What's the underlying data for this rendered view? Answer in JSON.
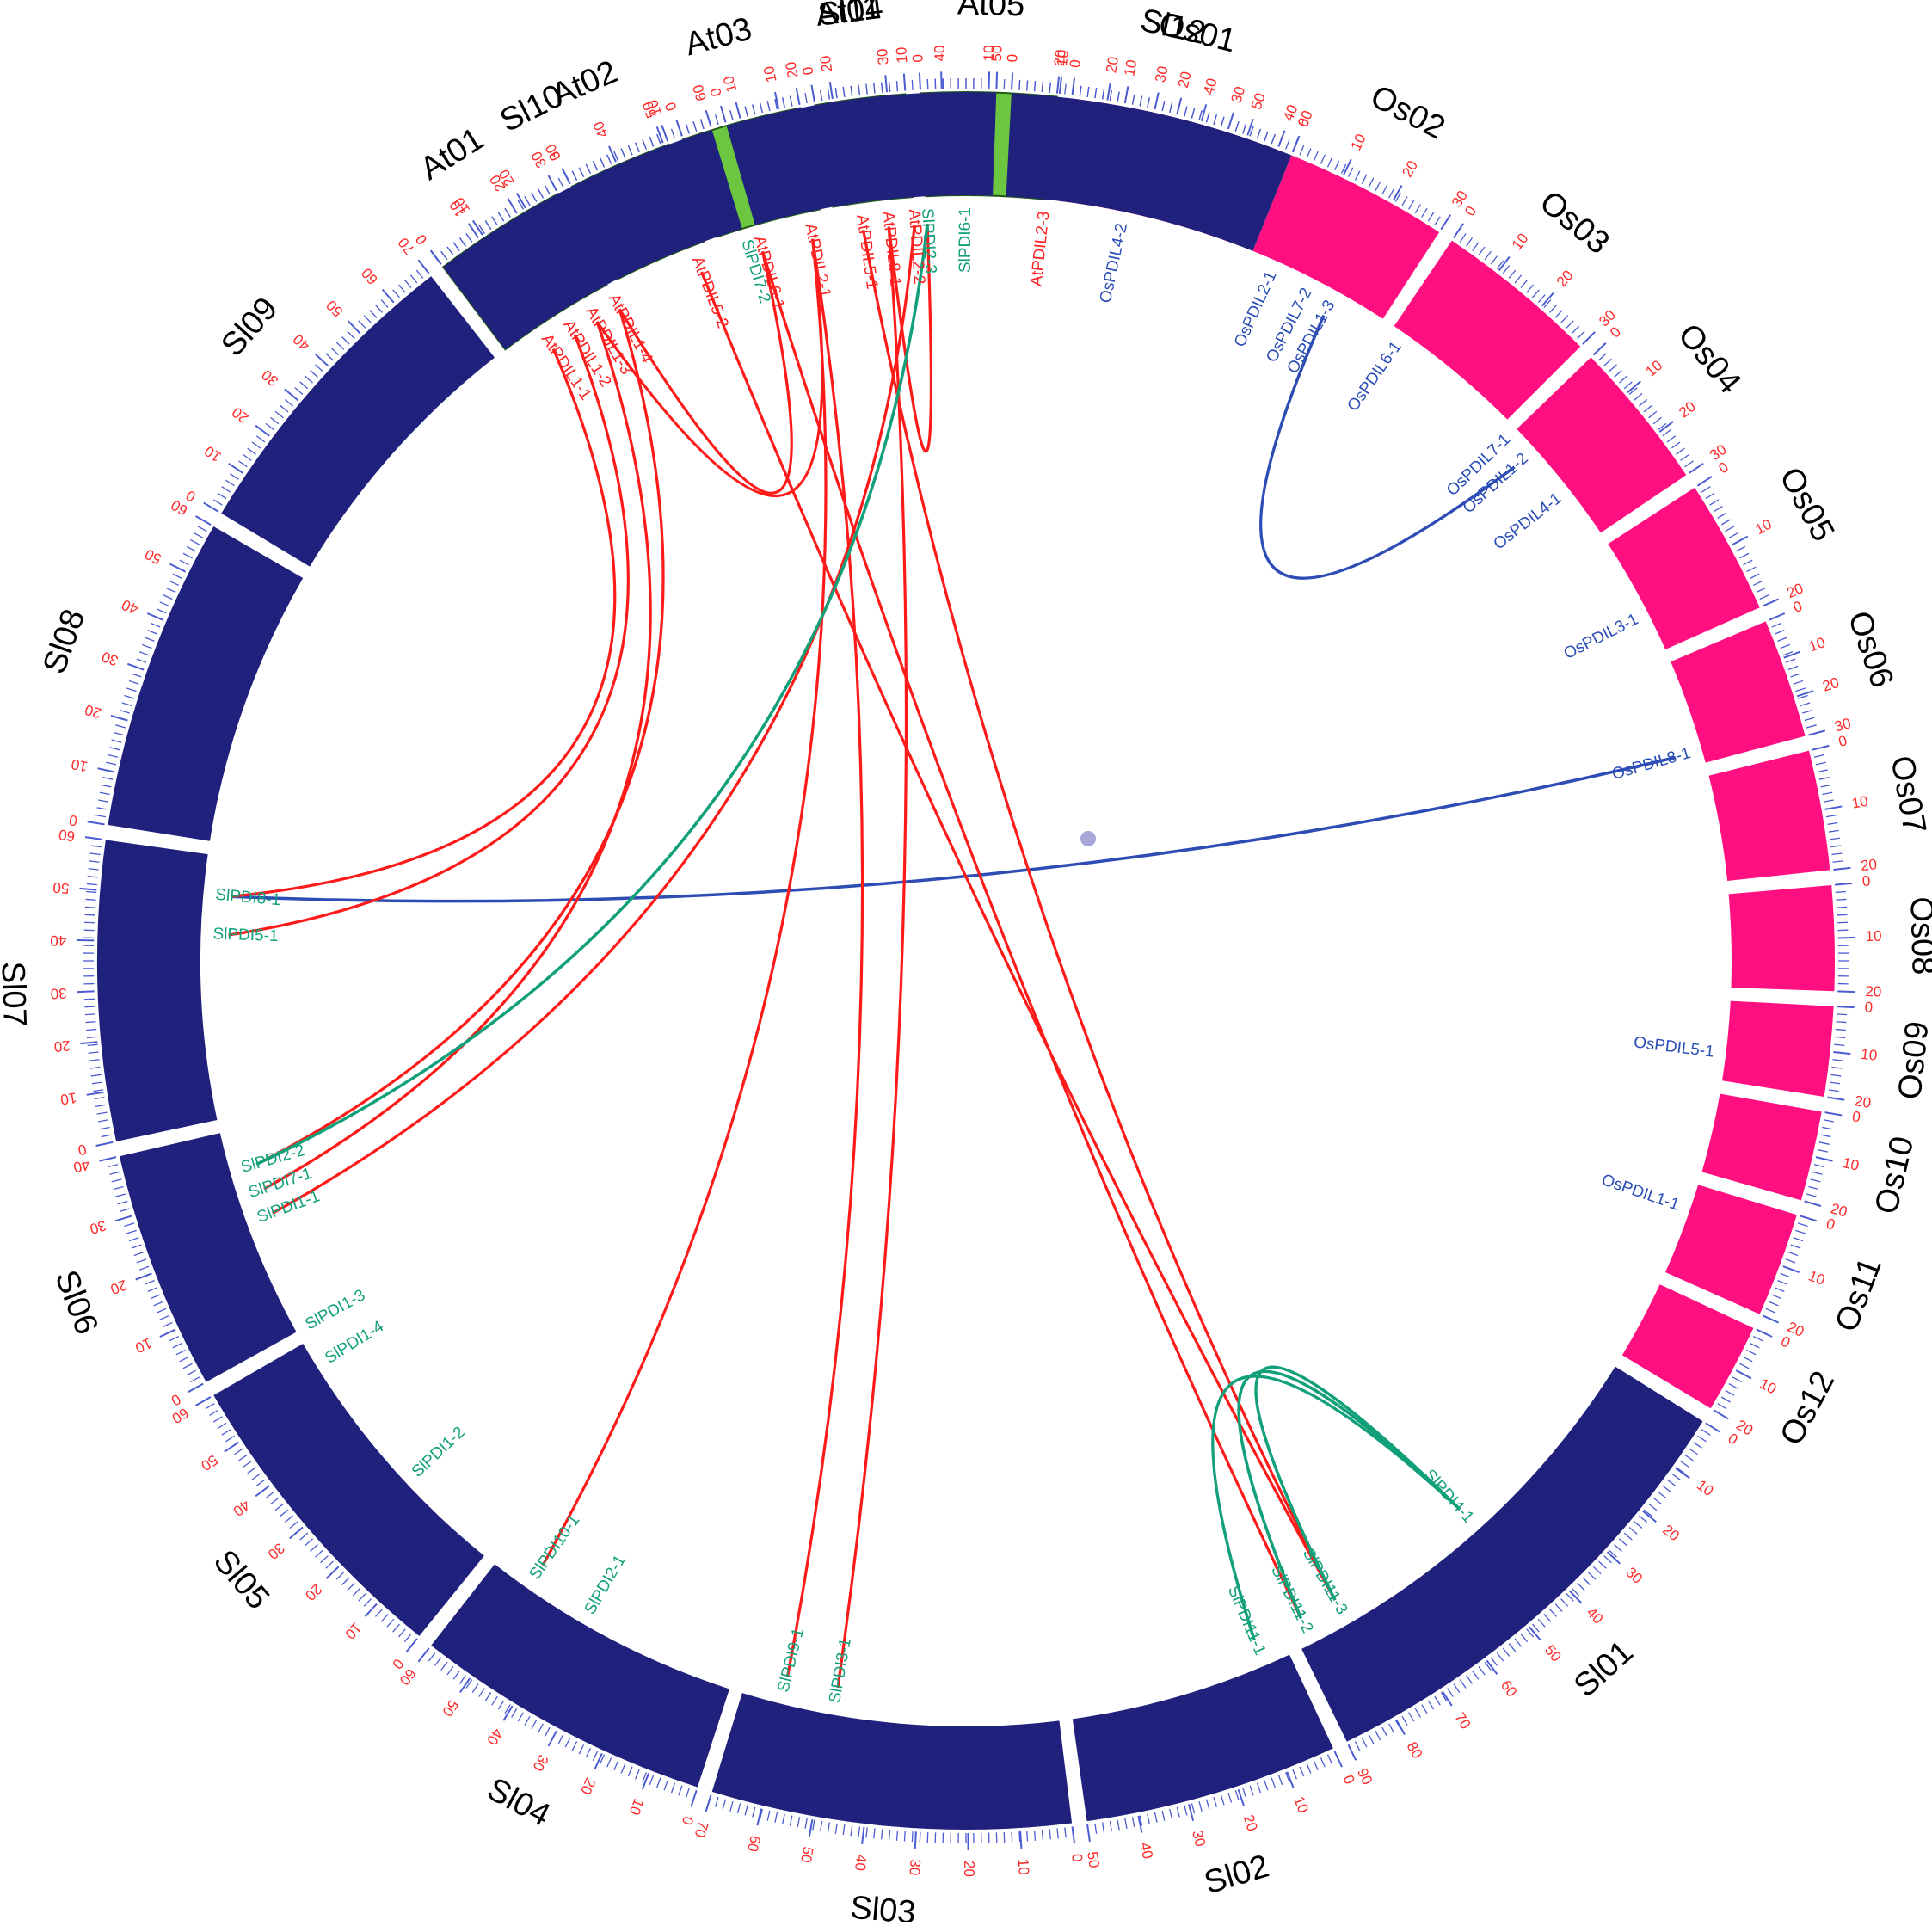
{
  "colors": {
    "at": "#6cc63f",
    "os": "#ff0f7f",
    "sl": "#1f217c",
    "tick_label": "#ff2a2a",
    "tick": "#4b5bd0",
    "link_at_sl": "#ff1a1a",
    "link_os": "#2e4db4",
    "link_sl": "#12a07a",
    "gene_at": "#ff2222",
    "gene_os": "#2a4db5",
    "gene_sl": "#12a07a"
  },
  "chromosomes": [
    {
      "id": "At01",
      "label": "At01",
      "group": "at",
      "start": 233,
      "end": 242,
      "tick_labels": [
        "0",
        "10",
        "20",
        "30"
      ]
    },
    {
      "id": "At02",
      "label": "At02",
      "group": "at",
      "start": 243,
      "end": 250,
      "tick_labels": [
        "0",
        "10"
      ]
    },
    {
      "id": "At03",
      "label": "At03",
      "group": "at",
      "start": 251,
      "end": 259,
      "tick_labels": [
        "0",
        "10",
        "20"
      ]
    },
    {
      "id": "At04",
      "label": "At04",
      "group": "at",
      "start": 260,
      "end": 266,
      "tick_labels": [
        "0",
        "10"
      ]
    },
    {
      "id": "At05",
      "label": "At05",
      "group": "at",
      "start": 267,
      "end": 276,
      "tick_labels": [
        "0",
        "10",
        "20"
      ]
    },
    {
      "id": "Os01",
      "label": "Os01",
      "group": "os",
      "start": 277,
      "end": 291,
      "tick_labels": [
        "0",
        "10",
        "20",
        "30",
        "40"
      ]
    },
    {
      "id": "Os02",
      "label": "Os02",
      "group": "os",
      "start": 292,
      "end": 303,
      "tick_labels": [
        "0",
        "10",
        "20",
        "30"
      ]
    },
    {
      "id": "Os03",
      "label": "Os03",
      "group": "os",
      "start": 304,
      "end": 315,
      "tick_labels": [
        "0",
        "10",
        "20",
        "30"
      ]
    },
    {
      "id": "Os04",
      "label": "Os04",
      "group": "os",
      "start": 316,
      "end": 326,
      "tick_labels": [
        "0",
        "10",
        "20",
        "30"
      ]
    },
    {
      "id": "Os05",
      "label": "Os05",
      "group": "os",
      "start": 327,
      "end": 336,
      "tick_labels": [
        "0",
        "10",
        "20"
      ]
    },
    {
      "id": "Os06",
      "label": "Os06",
      "group": "os",
      "start": 337,
      "end": 345,
      "tick_labels": [
        "0",
        "10",
        "20",
        "30"
      ]
    },
    {
      "id": "Os07",
      "label": "Os07",
      "group": "os",
      "start": 346,
      "end": 354,
      "tick_labels": [
        "0",
        "10",
        "20"
      ]
    },
    {
      "id": "Os08",
      "label": "Os08",
      "group": "os",
      "start": 355,
      "end": 362,
      "tick_labels": [
        "0",
        "10",
        "20"
      ]
    },
    {
      "id": "Os09",
      "label": "Os09",
      "group": "os",
      "start": 363,
      "end": 369,
      "tick_labels": [
        "0",
        "10",
        "20"
      ]
    },
    {
      "id": "Os10",
      "label": "Os10",
      "group": "os",
      "start": 370,
      "end": 376,
      "tick_labels": [
        "0",
        "10",
        "20"
      ]
    },
    {
      "id": "Os11",
      "label": "Os11",
      "group": "os",
      "start": 377,
      "end": 384,
      "tick_labels": [
        "0",
        "10",
        "20"
      ]
    },
    {
      "id": "Os12",
      "label": "Os12",
      "group": "os",
      "start": 385,
      "end": 391,
      "tick_labels": [
        "0",
        "10",
        "20"
      ]
    },
    {
      "id": "Sl01",
      "label": "Sl01",
      "group": "sl",
      "start": 392,
      "end": 424,
      "tick_labels": [
        "0",
        "10",
        "20",
        "30",
        "40",
        "50",
        "60",
        "70",
        "80",
        "90"
      ]
    },
    {
      "id": "Sl02",
      "label": "Sl02",
      "group": "sl",
      "start": 425,
      "end": 442,
      "tick_labels": [
        "0",
        "10",
        "20",
        "30",
        "40",
        "50"
      ]
    },
    {
      "id": "Sl03",
      "label": "Sl03",
      "group": "sl",
      "start": 443,
      "end": 467,
      "tick_labels": [
        "0",
        "10",
        "20",
        "30",
        "40",
        "50",
        "60",
        "70"
      ]
    },
    {
      "id": "Sl04",
      "label": "Sl04",
      "group": "sl",
      "start": 468,
      "end": 488,
      "tick_labels": [
        "0",
        "10",
        "20",
        "30",
        "40",
        "50",
        "60"
      ]
    },
    {
      "id": "Sl05",
      "label": "Sl05",
      "group": "sl",
      "start": 489,
      "end": 510,
      "tick_labels": [
        "0",
        "10",
        "20",
        "30",
        "40",
        "50",
        "60"
      ]
    },
    {
      "id": "Sl06",
      "label": "Sl06",
      "group": "sl",
      "start": 511,
      "end": 527,
      "tick_labels": [
        "0",
        "10",
        "20",
        "30",
        "40"
      ]
    },
    {
      "id": "Sl07",
      "label": "Sl07",
      "group": "sl",
      "start": 528,
      "end": 548,
      "tick_labels": [
        "0",
        "10",
        "20",
        "30",
        "40",
        "50",
        "60"
      ]
    },
    {
      "id": "Sl08",
      "label": "Sl08",
      "group": "sl",
      "start": 549,
      "end": 570,
      "tick_labels": [
        "0",
        "10",
        "20",
        "30",
        "40",
        "50",
        "60"
      ]
    },
    {
      "id": "Sl09",
      "label": "Sl09",
      "group": "sl",
      "start": 571,
      "end": 592,
      "tick_labels": [
        "0",
        "10",
        "20",
        "30",
        "40",
        "50",
        "60",
        "70"
      ]
    },
    {
      "id": "Sl10",
      "label": "Sl10",
      "group": "sl",
      "start": 593,
      "end": 613,
      "tick_labels": [
        "0",
        "10",
        "20",
        "30",
        "40",
        "50",
        "60"
      ]
    },
    {
      "id": "Sl11",
      "label": "Sl11",
      "group": "sl",
      "start": 614,
      "end": 632,
      "tick_labels": [
        "0",
        "10",
        "20",
        "30",
        "40",
        "50"
      ]
    },
    {
      "id": "Sl12",
      "label": "Sl12",
      "group": "sl",
      "start": 633,
      "end": 652,
      "tick_labels": [
        "0",
        "10",
        "20",
        "30",
        "40",
        "50",
        "60"
      ]
    }
  ],
  "genes": [
    {
      "id": "AtPDIL1-1",
      "label": "AtPDIL1-1",
      "group": "at",
      "angle": 236
    },
    {
      "id": "AtPDIL1-2",
      "label": "AtPDIL1-2",
      "group": "at",
      "angle": 238
    },
    {
      "id": "AtPDIL1-3",
      "label": "AtPDIL1-3",
      "group": "at",
      "angle": 240
    },
    {
      "id": "AtPDIL1-4",
      "label": "AtPDIL1-4",
      "group": "at",
      "angle": 242
    },
    {
      "id": "AtPDIL5-2",
      "label": "AtPDIL5-2",
      "group": "at",
      "angle": 249
    },
    {
      "id": "AtPDIL6-1",
      "label": "AtPDIL6-1",
      "group": "at",
      "angle": 254
    },
    {
      "id": "AtPDIL2-1",
      "label": "AtPDIL2-1",
      "group": "at",
      "angle": 258
    },
    {
      "id": "AtPDIL5-1",
      "label": "AtPDIL5-1",
      "group": "at",
      "angle": 262
    },
    {
      "id": "AtPDIL8-1",
      "label": "AtPDIL8-1",
      "group": "at",
      "angle": 264
    },
    {
      "id": "AtPDIL2-2",
      "label": "AtPDIL2-2",
      "group": "at",
      "angle": 266
    },
    {
      "id": "AtPDIL2-3",
      "label": "AtPDIL2-3",
      "group": "at",
      "angle": 276
    },
    {
      "id": "OsPDIL4-2",
      "label": "OsPDIL4-2",
      "group": "os",
      "angle": 282
    },
    {
      "id": "OsPDIL2-1",
      "label": "OsPDIL2-1",
      "group": "os",
      "angle": 294
    },
    {
      "id": "OsPDIL7-2",
      "label": "OsPDIL7-2",
      "group": "os",
      "angle": 297
    },
    {
      "id": "OsPDIL1-3",
      "label": "OsPDIL1-3",
      "group": "os",
      "angle": 299
    },
    {
      "id": "OsPDIL6-1",
      "label": "OsPDIL6-1",
      "group": "os",
      "angle": 305
    },
    {
      "id": "OsPDIL7-1",
      "label": "OsPDIL7-1",
      "group": "os",
      "angle": 316
    },
    {
      "id": "OsPDIL1-2",
      "label": "OsPDIL1-2",
      "group": "os",
      "angle": 318
    },
    {
      "id": "OsPDIL4-1",
      "label": "OsPDIL4-1",
      "group": "os",
      "angle": 322
    },
    {
      "id": "OsPDIL3-1",
      "label": "OsPDIL3-1",
      "group": "os",
      "angle": 333
    },
    {
      "id": "OsPDIL8-1",
      "label": "OsPDIL8-1",
      "group": "os",
      "angle": 344
    },
    {
      "id": "OsPDIL5-1",
      "label": "OsPDIL5-1",
      "group": "os",
      "angle": 367
    },
    {
      "id": "OsPDIL1-1",
      "label": "OsPDIL1-1",
      "group": "os",
      "angle": 379
    },
    {
      "id": "SlPDI4-1",
      "label": "SlPDI4-1",
      "group": "sl",
      "angle": 408
    },
    {
      "id": "SlPDI11-3",
      "label": "SlPDI11-3",
      "group": "sl",
      "angle": 420
    },
    {
      "id": "SlPDI11-2",
      "label": "SlPDI11-2",
      "group": "sl",
      "angle": 423
    },
    {
      "id": "SlPDI11-1",
      "label": "SlPDI11-1",
      "group": "sl",
      "angle": 427
    },
    {
      "id": "SlPDI3-1",
      "label": "SlPDI3-1",
      "group": "sl",
      "angle": 460
    },
    {
      "id": "SlPDI9-1",
      "label": "SlPDI9-1",
      "group": "sl",
      "angle": 464
    },
    {
      "id": "SlPDI2-1",
      "label": "SlPDI2-1",
      "group": "sl",
      "angle": 480
    },
    {
      "id": "SlPDI10-1",
      "label": "SlPDI10-1",
      "group": "sl",
      "angle": 485
    },
    {
      "id": "SlPDI1-2",
      "label": "SlPDI1-2",
      "group": "sl",
      "angle": 497
    },
    {
      "id": "SlPDI1-4",
      "label": "SlPDI1-4",
      "group": "sl",
      "angle": 508
    },
    {
      "id": "SlPDI1-3",
      "label": "SlPDI1-3",
      "group": "sl",
      "angle": 511
    },
    {
      "id": "SlPDI1-1",
      "label": "SlPDI1-1",
      "group": "sl",
      "angle": 520
    },
    {
      "id": "SlPDI7-1",
      "label": "SlPDI7-1",
      "group": "sl",
      "angle": 522
    },
    {
      "id": "SlPDI2-2",
      "label": "SlPDI2-2",
      "group": "sl",
      "angle": 524
    },
    {
      "id": "SlPDI5-1",
      "label": "SlPDI5-1",
      "group": "sl",
      "angle": 542
    },
    {
      "id": "SlPDI8-1",
      "label": "SlPDI8-1",
      "group": "sl",
      "angle": 545
    },
    {
      "id": "SlPDI7-2",
      "label": "SlPDI7-2",
      "group": "sl",
      "angle": 613
    },
    {
      "id": "SlPDI2-3",
      "label": "SlPDI2-3",
      "group": "sl",
      "angle": 627
    },
    {
      "id": "SlPDI6-1",
      "label": "SlPDI6-1",
      "group": "sl",
      "angle": 630
    }
  ],
  "links": [
    {
      "from": "OsPDIL1-3",
      "to": "OsPDIL1-2",
      "type": "os"
    },
    {
      "from": "OsPDIL8-1",
      "to": "SlPDI8-1",
      "type": "os"
    },
    {
      "from": "AtPDIL2-2",
      "to": "SlPDI1-1",
      "type": "at"
    },
    {
      "from": "AtPDIL8-1",
      "to": "SlPDI3-1",
      "type": "at"
    },
    {
      "from": "AtPDIL5-1",
      "to": "SlPDI11-3",
      "type": "at"
    },
    {
      "from": "AtPDIL2-1",
      "to": "SlPDI10-1",
      "type": "at"
    },
    {
      "from": "AtPDIL6-1",
      "to": "SlPDI11-2",
      "type": "at"
    },
    {
      "from": "AtPDIL5-2",
      "to": "SlPDI11-3",
      "type": "at"
    },
    {
      "from": "AtPDIL1-1",
      "to": "SlPDI8-1",
      "type": "at"
    },
    {
      "from": "AtPDIL1-2",
      "to": "SlPDI5-1",
      "type": "at"
    },
    {
      "from": "AtPDIL1-3",
      "to": "SlPDI7-1",
      "type": "at"
    },
    {
      "from": "AtPDIL1-4",
      "to": "SlPDI2-2",
      "type": "at"
    },
    {
      "from": "AtPDIL1-4",
      "to": "AtPDIL6-1",
      "type": "at"
    },
    {
      "from": "AtPDIL1-3",
      "to": "AtPDIL2-1",
      "type": "at"
    },
    {
      "from": "AtPDIL8-1",
      "to": "SlPDI2-3",
      "type": "at"
    },
    {
      "from": "AtPDIL2-1",
      "to": "SlPDI9-1",
      "type": "at"
    },
    {
      "from": "SlPDI2-3",
      "to": "SlPDI2-2",
      "type": "sl"
    },
    {
      "from": "SlPDI4-1",
      "to": "SlPDI11-1",
      "type": "sl"
    },
    {
      "from": "SlPDI11-3",
      "to": "SlPDI4-1",
      "type": "sl"
    },
    {
      "from": "SlPDI11-2",
      "to": "SlPDI4-1",
      "type": "sl"
    }
  ]
}
